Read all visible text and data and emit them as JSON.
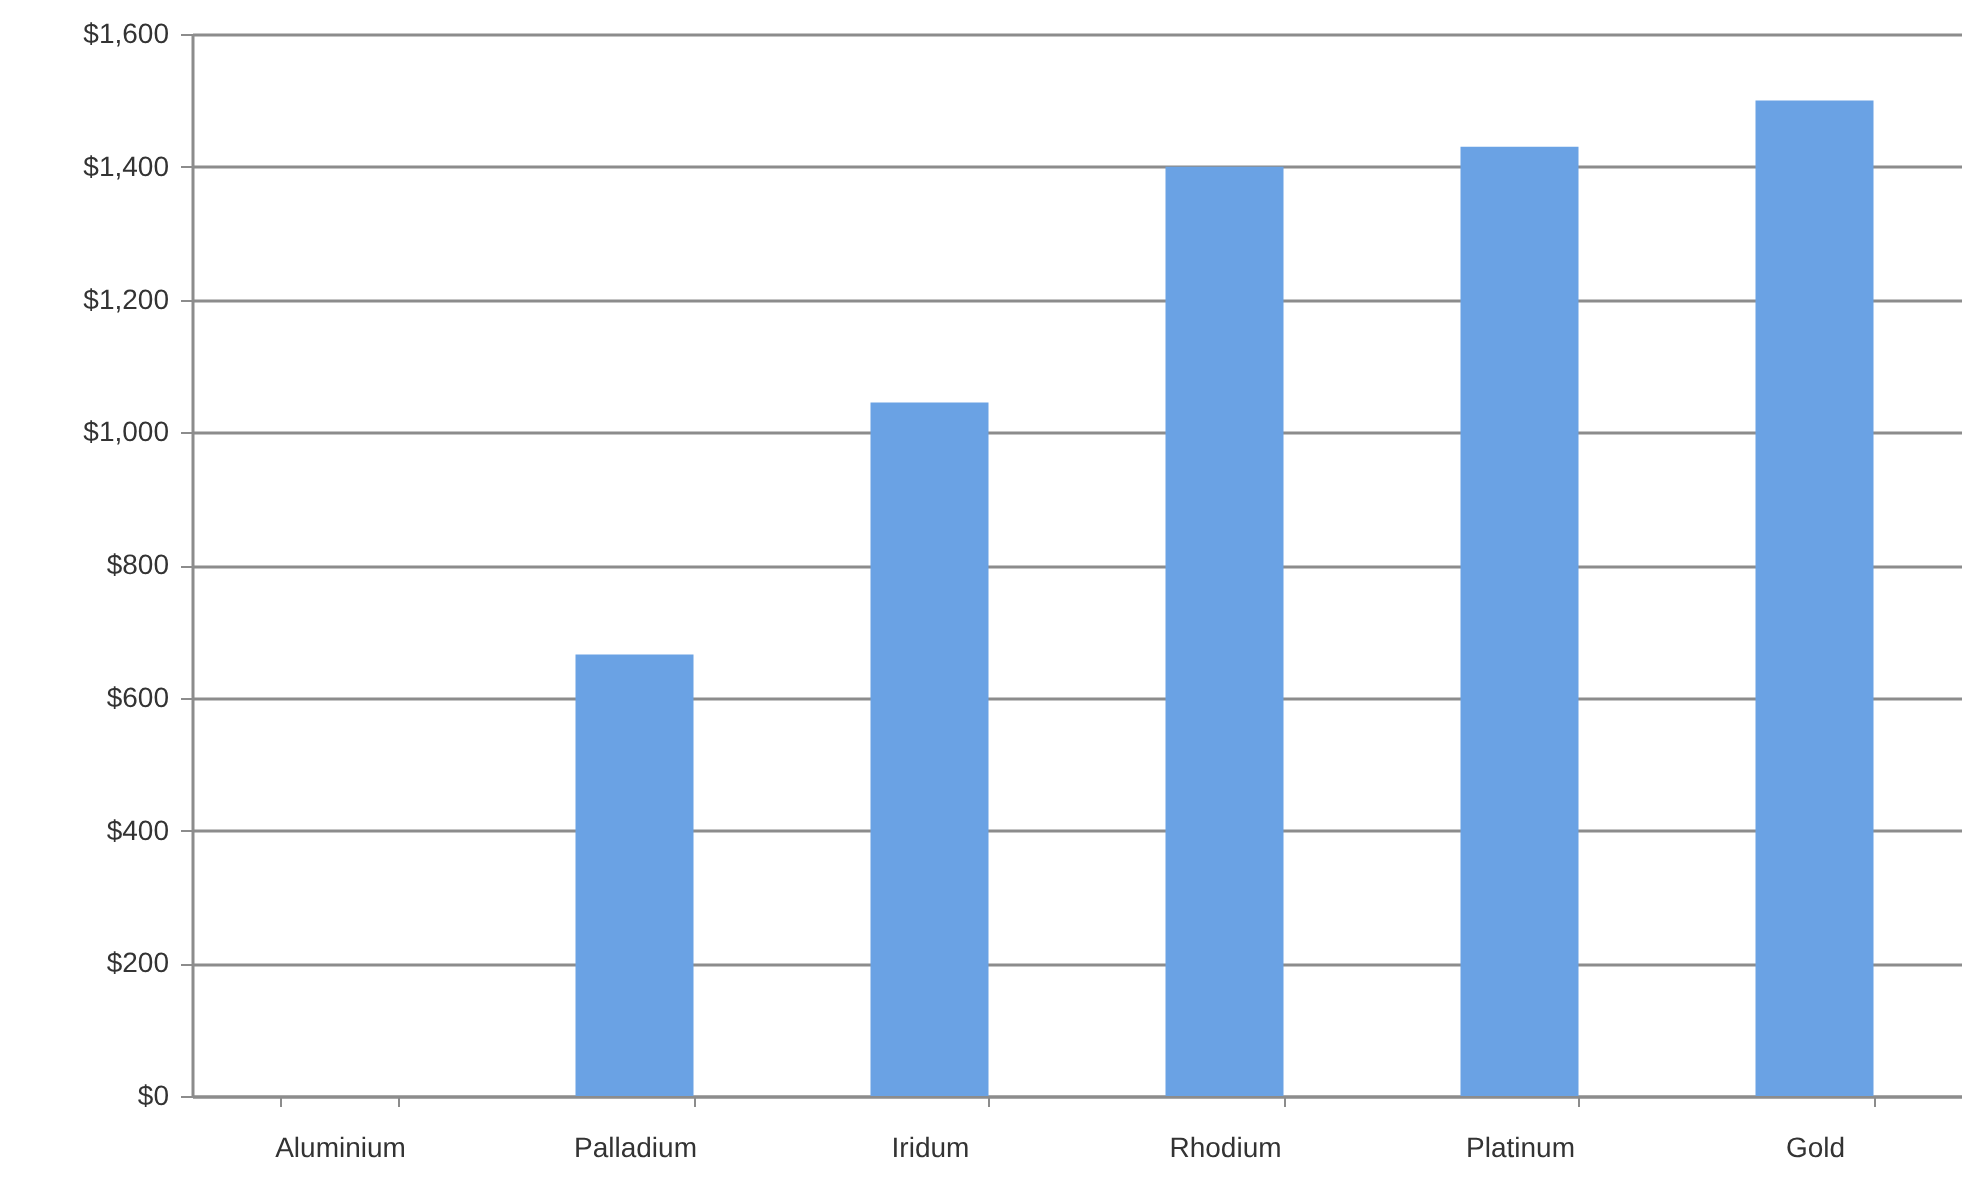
{
  "chart_data": {
    "type": "bar",
    "categories": [
      "Aluminium",
      "Palladium",
      "Iridum",
      "Rhodium",
      "Platinum",
      "Gold"
    ],
    "values": [
      0,
      665,
      1045,
      1400,
      1430,
      1500
    ],
    "color": "#6aa2e4",
    "ylim": [
      0,
      1600
    ],
    "yticks": [
      {
        "value": 0,
        "label": "$0"
      },
      {
        "value": 200,
        "label": "$200"
      },
      {
        "value": 400,
        "label": "$400"
      },
      {
        "value": 600,
        "label": "$600"
      },
      {
        "value": 800,
        "label": "$800"
      },
      {
        "value": 1000,
        "label": "$1,000"
      },
      {
        "value": 1200,
        "label": "$1,200"
      },
      {
        "value": 1400,
        "label": "$1,400"
      },
      {
        "value": 1600,
        "label": "$1,600"
      }
    ],
    "grid": "y"
  }
}
